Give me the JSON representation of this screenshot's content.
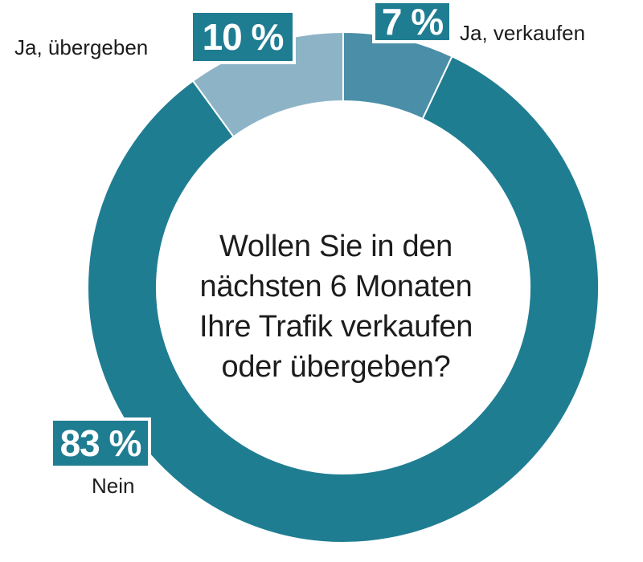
{
  "chart_data": {
    "type": "pie",
    "title": "Wollen Sie in den nächsten 6 Monaten Ihre Trafik verkaufen oder übergeben?",
    "title_lines": [
      "Wollen Sie in den",
      "nächsten 6 Monaten",
      "Ihre Trafik verkaufen",
      "oder übergeben?"
    ],
    "donut": true,
    "slices": [
      {
        "label": "Ja, verkaufen",
        "value": 7,
        "value_label": "7 %",
        "color": "#4a8ea8"
      },
      {
        "label": "Nein",
        "value": 83,
        "value_label": "83 %",
        "color": "#1f7d92"
      },
      {
        "label": "Ja, übergeben",
        "value": 10,
        "value_label": "10 %",
        "color": "#8db4c6"
      }
    ]
  },
  "colors": {
    "label_box": "#1f7d92",
    "text": "#1c1c1c",
    "background": "#ffffff"
  }
}
